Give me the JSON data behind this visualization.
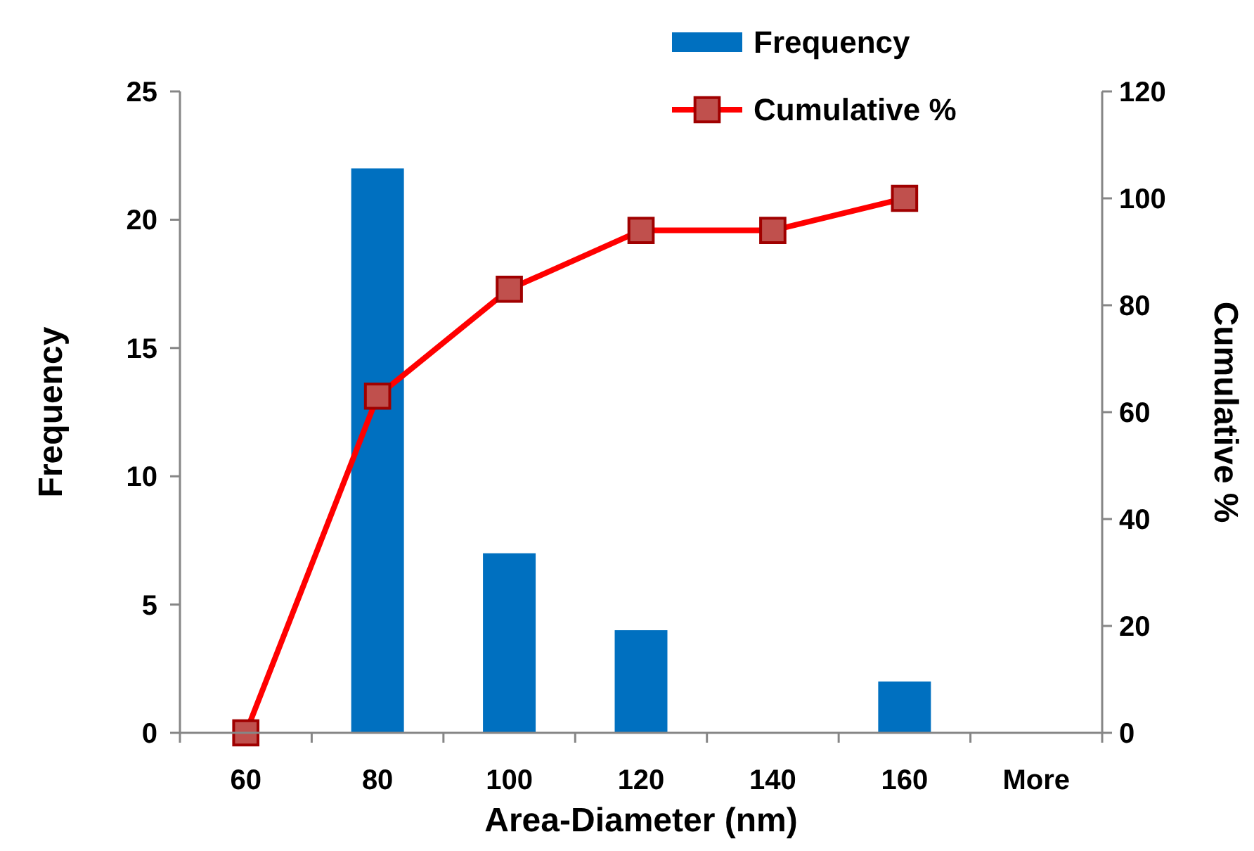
{
  "chart_data": {
    "type": "bar",
    "xlabel": "Area-Diameter (nm)",
    "ylabel": "Frequency",
    "y2label": "Cumulative %",
    "categories": [
      "60",
      "80",
      "100",
      "120",
      "140",
      "160",
      "More"
    ],
    "series": [
      {
        "name": "Frequency",
        "color": "#0070c0",
        "values": [
          0,
          22,
          7,
          4,
          0,
          2,
          0
        ]
      },
      {
        "name": "Cumulative %",
        "type": "line",
        "axis": "y2",
        "color": "#ff0000",
        "marker": "square",
        "values": [
          0,
          63,
          83,
          94,
          94,
          100,
          null
        ]
      }
    ],
    "ylim": [
      0,
      25
    ],
    "yticks": [
      0,
      5,
      10,
      15,
      20,
      25
    ],
    "y2lim": [
      0,
      120
    ],
    "y2ticks": [
      0,
      20,
      40,
      60,
      80,
      100,
      120
    ],
    "grid": false,
    "legend": "top"
  }
}
